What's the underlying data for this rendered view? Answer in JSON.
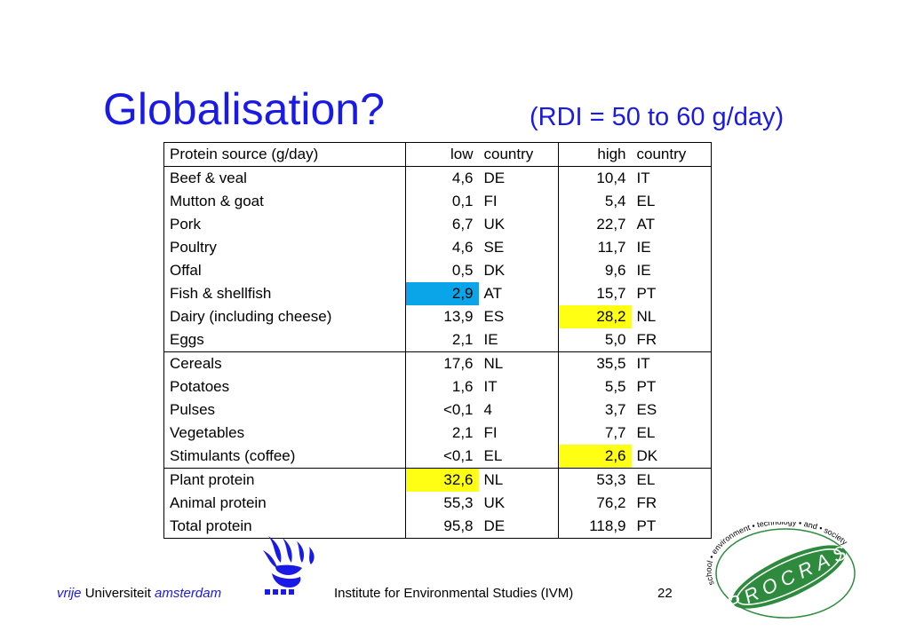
{
  "slide": {
    "title": "Globalisation?",
    "subtitle": "(RDI = 50 to 60 g/day)",
    "page_number": "22"
  },
  "table": {
    "headers": [
      "Protein source (g/day)",
      "low",
      "country",
      "high",
      "country"
    ],
    "rows": [
      [
        "Beef & veal",
        "4,6",
        "DE",
        "10,4",
        "IT"
      ],
      [
        "Mutton & goat",
        "0,1",
        "FI",
        "5,4",
        "EL"
      ],
      [
        "Pork",
        "6,7",
        "UK",
        "22,7",
        "AT"
      ],
      [
        "Poultry",
        "4,6",
        "SE",
        "11,7",
        "IE"
      ],
      [
        "Offal",
        "0,5",
        "DK",
        "9,6",
        "IE"
      ],
      [
        "Fish & shellfish",
        "2,9",
        "AT",
        "15,7",
        "PT"
      ],
      [
        "Dairy (including cheese)",
        "13,9",
        "ES",
        "28,2",
        "NL"
      ],
      [
        "Eggs",
        "2,1",
        "IE",
        "5,0",
        "FR"
      ],
      [
        "Cereals",
        "17,6",
        "NL",
        "35,5",
        "IT"
      ],
      [
        "Potatoes",
        "1,6",
        "IT",
        "5,5",
        "PT"
      ],
      [
        "Pulses",
        "<0,1",
        "4",
        "3,7",
        "ES"
      ],
      [
        "Vegetables",
        "2,1",
        "FI",
        "7,7",
        "EL"
      ],
      [
        "Stimulants (coffee)",
        "<0,1",
        "EL",
        "2,6",
        "DK"
      ],
      [
        "Plant protein",
        "32,6",
        "NL",
        "53,3",
        "EL"
      ],
      [
        "Animal protein",
        "55,3",
        "UK",
        "76,2",
        "FR"
      ],
      [
        "Total protein",
        "95,8",
        "DE",
        "118,9",
        "PT"
      ]
    ],
    "highlight_colors": {
      "blue": "#0aa5e8",
      "yellow": "#ffff14"
    }
  },
  "footer": {
    "vrije": "vrije",
    "universiteit": "Universiteit",
    "amsterdam": "amsterdam",
    "institute": "Institute for Environmental Studies (IVM)"
  },
  "logos": {
    "vu_logo": "griffin-logo",
    "procras_logo": {
      "word": "PROCRAS",
      "ring_text": "school • environment • technology • and • society"
    }
  },
  "colors": {
    "title": "#1a1ae6",
    "logo_green": "#2e8b3e"
  }
}
